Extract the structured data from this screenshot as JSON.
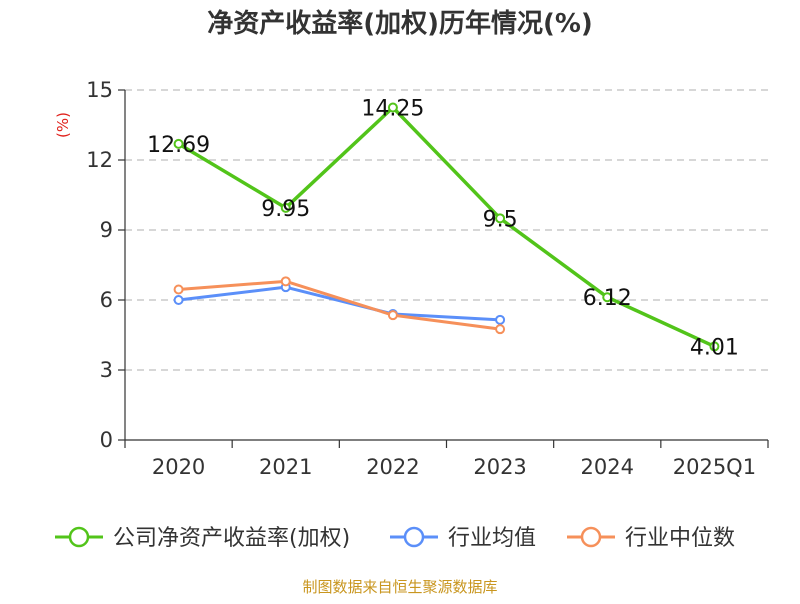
{
  "chart_data": {
    "type": "line",
    "title": "净资产收益率(加权)历年情况(%)",
    "ylabel": "(%)",
    "xlabel": "",
    "categories": [
      "2020",
      "2021",
      "2022",
      "2023",
      "2024",
      "2025Q1"
    ],
    "ylim": [
      0,
      15
    ],
    "yticks": [
      0,
      3,
      6,
      9,
      12,
      15
    ],
    "grid": true,
    "legend_position": "bottom",
    "series": [
      {
        "name": "公司净资产收益率(加权)",
        "color": "#52c41a",
        "values": [
          12.69,
          9.95,
          14.25,
          9.5,
          6.12,
          4.01
        ],
        "labels": [
          "12.69",
          "9.95",
          "14.25",
          "9.5",
          "6.12",
          "4.01"
        ]
      },
      {
        "name": "行业均值",
        "color": "#5b8ff9",
        "values": [
          6.0,
          6.55,
          5.4,
          5.15,
          null,
          null
        ]
      },
      {
        "name": "行业中位数",
        "color": "#f6905a",
        "values": [
          6.45,
          6.8,
          5.35,
          4.75,
          null,
          null
        ]
      }
    ],
    "source": "制图数据来自恒生聚源数据库"
  }
}
